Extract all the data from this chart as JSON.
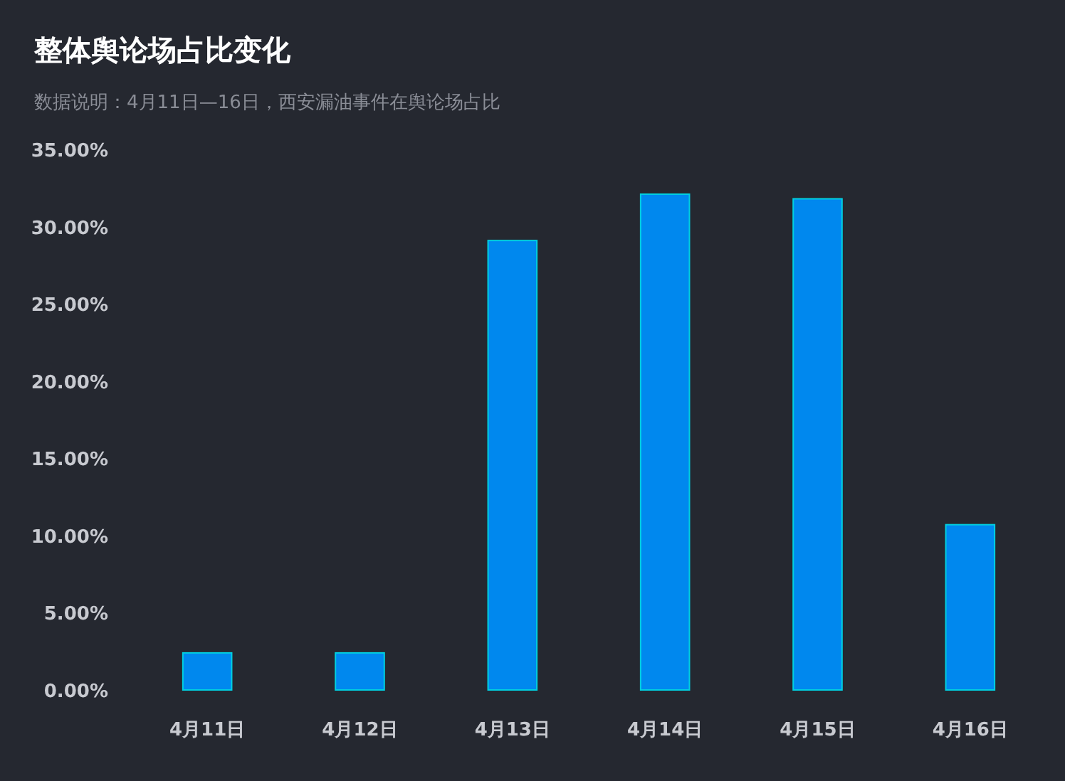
{
  "chart_data": {
    "type": "bar",
    "title": "整体舆论场占比变化",
    "subtitle": "数据说明：4月11日—16日，西安漏油事件在舆论场占比",
    "categories": [
      "4月11日",
      "4月12日",
      "4月13日",
      "4月14日",
      "4月15日",
      "4月16日"
    ],
    "values": [
      2.4,
      2.4,
      29.1,
      32.1,
      31.8,
      10.7
    ],
    "color": "#0088ee",
    "ylim": [
      0,
      35
    ],
    "yticks": [
      {
        "value": 0,
        "label": "0.00%"
      },
      {
        "value": 5,
        "label": "5.00%"
      },
      {
        "value": 10,
        "label": "10.00%"
      },
      {
        "value": 15,
        "label": "15.00%"
      },
      {
        "value": 20,
        "label": "20.00%"
      },
      {
        "value": 25,
        "label": "25.00%"
      },
      {
        "value": 30,
        "label": "30.00%"
      },
      {
        "value": 35,
        "label": "35.00%"
      }
    ]
  }
}
